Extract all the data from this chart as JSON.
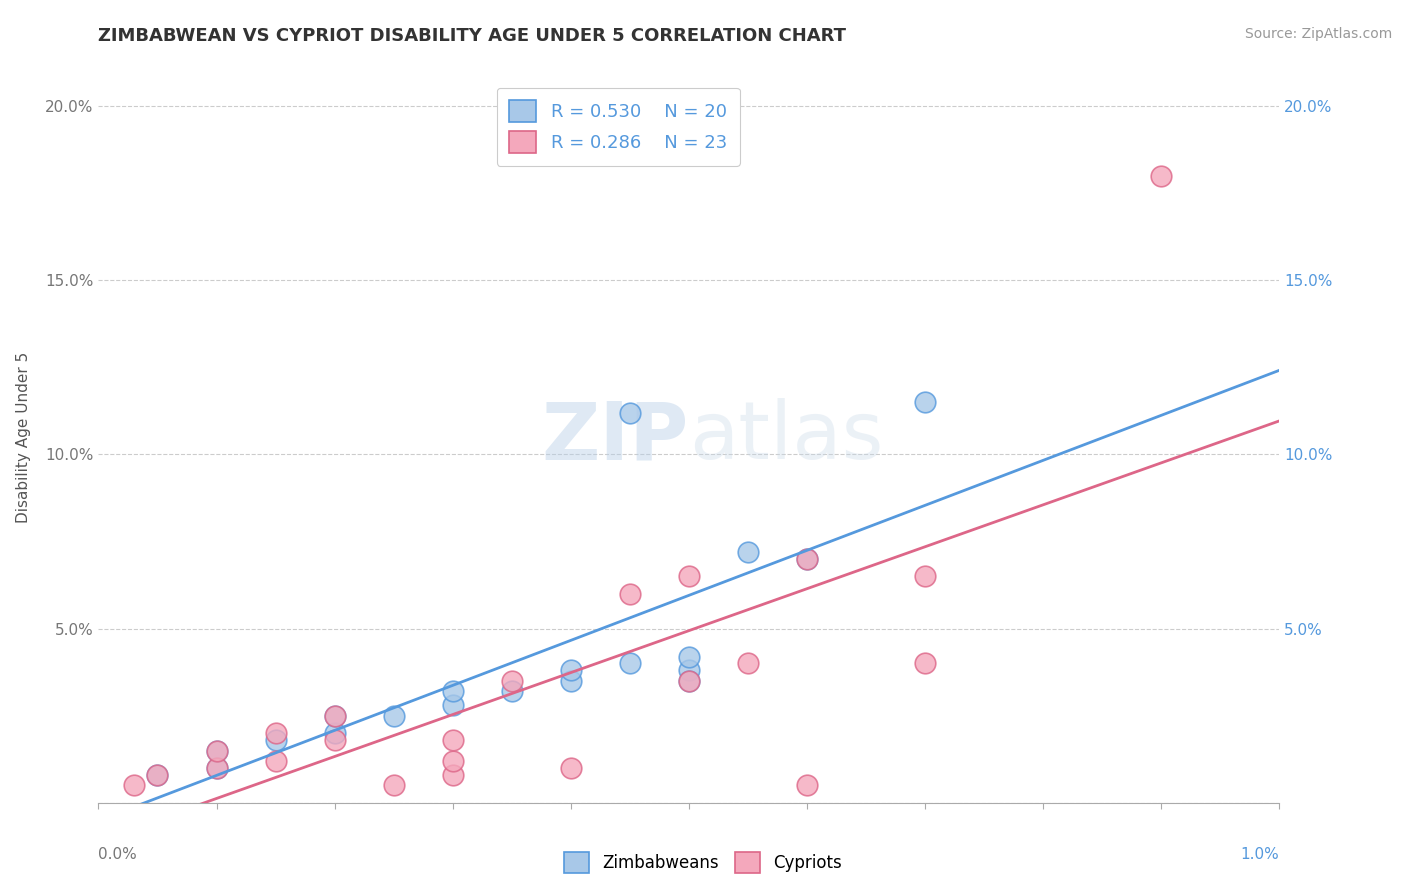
{
  "title": "ZIMBABWEAN VS CYPRIOT DISABILITY AGE UNDER 5 CORRELATION CHART",
  "source": "Source: ZipAtlas.com",
  "ylabel": "Disability Age Under 5",
  "legend_labels": [
    "Zimbabweans",
    "Cypriots"
  ],
  "legend_r": [
    0.53,
    0.286
  ],
  "legend_n": [
    20,
    23
  ],
  "blue_color": "#a8c8e8",
  "pink_color": "#f4a8bc",
  "blue_line_color": "#5599dd",
  "pink_line_color": "#dd6688",
  "ytick_values": [
    0.0,
    0.05,
    0.1,
    0.15,
    0.2
  ],
  "ytick_labels": [
    "",
    "5.0%",
    "10.0%",
    "15.0%",
    "20.0%"
  ],
  "blue_points_x": [
    0.0005,
    0.001,
    0.001,
    0.0015,
    0.002,
    0.002,
    0.0025,
    0.003,
    0.003,
    0.0035,
    0.004,
    0.004,
    0.0045,
    0.0045,
    0.005,
    0.005,
    0.005,
    0.0055,
    0.006,
    0.007
  ],
  "blue_points_y": [
    0.008,
    0.01,
    0.015,
    0.018,
    0.02,
    0.025,
    0.025,
    0.028,
    0.032,
    0.032,
    0.035,
    0.038,
    0.04,
    0.112,
    0.038,
    0.042,
    0.035,
    0.072,
    0.07,
    0.115
  ],
  "pink_points_x": [
    0.0003,
    0.0005,
    0.001,
    0.001,
    0.0015,
    0.0015,
    0.002,
    0.002,
    0.0025,
    0.003,
    0.003,
    0.003,
    0.0035,
    0.004,
    0.0045,
    0.005,
    0.005,
    0.0055,
    0.006,
    0.006,
    0.007,
    0.007,
    0.009
  ],
  "pink_points_y": [
    0.005,
    0.008,
    0.01,
    0.015,
    0.012,
    0.02,
    0.018,
    0.025,
    0.005,
    0.008,
    0.012,
    0.018,
    0.035,
    0.01,
    0.06,
    0.035,
    0.065,
    0.04,
    0.005,
    0.07,
    0.04,
    0.065,
    0.18
  ],
  "watermark_zip": "ZIP",
  "watermark_atlas": "atlas",
  "xmin": 0.0,
  "xmax": 0.01,
  "ymin": 0.0,
  "ymax": 0.21
}
